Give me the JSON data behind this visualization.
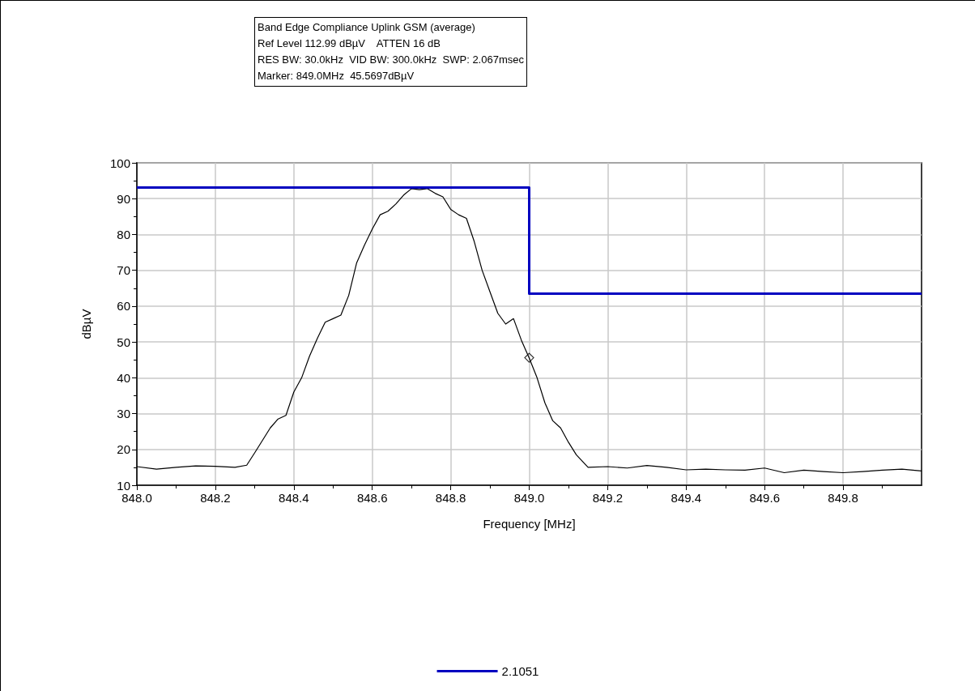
{
  "chart_data": {
    "type": "line",
    "title": "Band Edge Compliance Uplink GSM (average)",
    "annotations": [
      "Ref Level 112.99 dBµV    ATTEN 16 dB",
      "RES BW: 30.0kHz  VID BW: 300.0kHz  SWP: 2.067msec",
      "Marker: 849.0MHz  45.5697dBµV"
    ],
    "xlabel": "Frequency [MHz]",
    "ylabel": "dBµV",
    "xlim": [
      848,
      850
    ],
    "ylim": [
      10,
      100
    ],
    "xticks": [
      {
        "value": 848,
        "label": "848.0"
      },
      {
        "value": 848.2,
        "label": "848.2"
      },
      {
        "value": 848.4,
        "label": "848.4"
      },
      {
        "value": 848.6,
        "label": "848.6"
      },
      {
        "value": 848.8,
        "label": "848.8"
      },
      {
        "value": 849,
        "label": "849.0"
      },
      {
        "value": 849.2,
        "label": "849.2"
      },
      {
        "value": 849.4,
        "label": "849.4"
      },
      {
        "value": 849.6,
        "label": "849.6"
      },
      {
        "value": 849.8,
        "label": "849.8"
      }
    ],
    "yticks": [
      10,
      20,
      30,
      40,
      50,
      60,
      70,
      80,
      90,
      100
    ],
    "grid": true,
    "legend": "bottom",
    "marker": "none",
    "line_style": "solid",
    "series": [
      {
        "color": "#000000",
        "x": [
          848.0,
          848.05,
          848.1,
          848.15,
          848.2,
          848.25,
          848.28,
          848.3,
          848.34,
          848.36,
          848.38,
          848.4,
          848.42,
          848.44,
          848.46,
          848.48,
          848.5,
          848.52,
          848.54,
          848.56,
          848.58,
          848.6,
          848.62,
          848.64,
          848.66,
          848.68,
          848.7,
          848.72,
          848.74,
          848.76,
          848.78,
          848.8,
          848.82,
          848.84,
          848.86,
          848.88,
          848.9,
          848.92,
          848.94,
          848.96,
          848.98,
          849.0,
          849.02,
          849.04,
          849.06,
          849.08,
          849.1,
          849.12,
          849.15,
          849.2,
          849.25,
          849.3,
          849.35,
          849.4,
          849.45,
          849.5,
          849.55,
          849.6,
          849.65,
          849.7,
          849.75,
          849.8,
          849.85,
          849.9,
          849.95,
          850.0
        ],
        "values": [
          15.2,
          14.5,
          15,
          15.4,
          15.3,
          15,
          15.6,
          19,
          26,
          28.5,
          29.5,
          36,
          40,
          46,
          51,
          55.5,
          56.5,
          57.5,
          63,
          72,
          77,
          81.5,
          85.5,
          86.5,
          88.5,
          91,
          92.8,
          92.5,
          92.8,
          91.5,
          90.5,
          87,
          85.5,
          84.5,
          78,
          70,
          64,
          58,
          55,
          56.5,
          50.5,
          45.5,
          40,
          33,
          28,
          26,
          22,
          18.5,
          15,
          15.2,
          14.8,
          15.5,
          15,
          14.3,
          14.5,
          14.3,
          14.2,
          14.8,
          13.5,
          14.2,
          13.8,
          13.5,
          13.8,
          14.2,
          14.5,
          14
        ]
      },
      {
        "type": "step",
        "name": "2.1051",
        "color": "#0000c0",
        "x": [
          848,
          849,
          850
        ],
        "values": [
          93.1,
          63.5,
          63.5
        ]
      },
      {
        "type": "scatter",
        "marker": "diamond",
        "color": "#000000",
        "x": [
          849.0
        ],
        "values": [
          45.6
        ]
      }
    ]
  }
}
